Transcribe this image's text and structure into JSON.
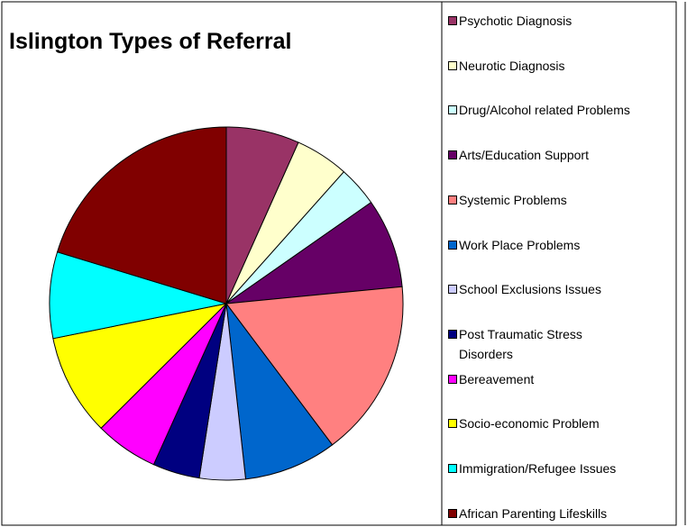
{
  "chart_data": {
    "type": "pie",
    "title": "Islington Types of Referral",
    "categories": [
      "Psychotic Diagnosis",
      "Neurotic Diagnosis",
      "Drug/Alcohol related Problems",
      "Arts/Education Support",
      "Systemic Problems",
      "Work Place Problems",
      "School Exclusions Issues",
      "Post Traumatic Stress Disorders",
      "Bereavement",
      "Socio-economic Problem",
      "Immigration/Refugee Issues",
      "African Parenting Lifeskills"
    ],
    "values": [
      6.7,
      4.9,
      3.7,
      8.2,
      16.3,
      8.5,
      4.2,
      4.3,
      5.8,
      9.3,
      7.9,
      20.3
    ],
    "colors": [
      "#993366",
      "#ffffcc",
      "#ccffff",
      "#660066",
      "#ff8080",
      "#0066cc",
      "#ccccff",
      "#000080",
      "#ff00ff",
      "#ffff00",
      "#00ffff",
      "#800000"
    ],
    "legend": "right"
  }
}
